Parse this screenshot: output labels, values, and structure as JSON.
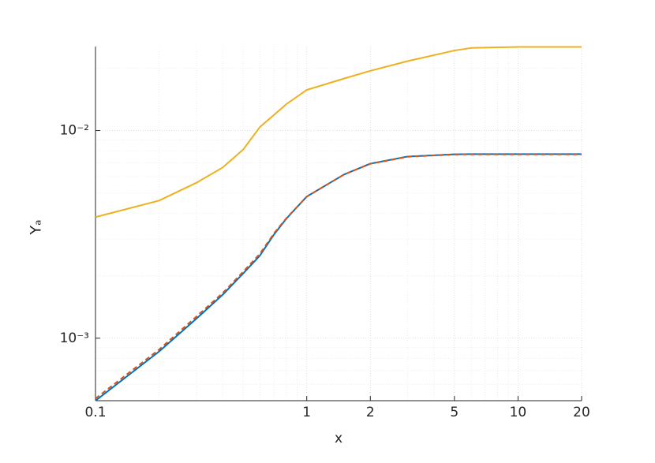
{
  "chart_data": {
    "type": "line",
    "xlabel": "x",
    "ylabel": "Yₐ",
    "x": [
      0.1,
      0.2,
      0.3,
      0.4,
      0.5,
      0.6,
      0.7,
      0.8,
      1,
      1.5,
      2,
      3,
      5,
      6,
      10,
      20
    ],
    "series": [
      {
        "color": "#EDB120",
        "dash": false,
        "values": [
          0.00383,
          0.0046,
          0.0056,
          0.00664,
          0.0081,
          0.0104,
          0.0119,
          0.0134,
          0.0157,
          0.0178,
          0.0194,
          0.0216,
          0.0243,
          0.025,
          0.0253,
          0.0253
        ]
      },
      {
        "color": "#0072BD",
        "dash": false,
        "values": [
          0.0005,
          0.000863,
          0.00124,
          0.00162,
          0.00205,
          0.0025,
          0.00316,
          0.00376,
          0.00481,
          0.00614,
          0.00693,
          0.0075,
          0.00769,
          0.0077,
          0.0077,
          0.0077
        ]
      },
      {
        "color": "#D95319",
        "dash": true,
        "values": [
          0.000512,
          0.000882,
          0.00127,
          0.00165,
          0.00209,
          0.00255,
          0.0032,
          0.00378,
          0.00481,
          0.00614,
          0.00692,
          0.00748,
          0.00767,
          0.00768,
          0.00768,
          0.00768
        ]
      }
    ],
    "xlog": true,
    "ylog": true,
    "xlim": [
      0.1,
      20
    ],
    "ylim": [
      0.0005,
      0.0254
    ],
    "xticks": [
      0.1,
      1,
      2,
      5,
      10,
      20
    ],
    "yticks": [
      {
        "value": 0.001,
        "label": "10⁻³"
      },
      {
        "value": 0.01,
        "label": "10⁻²"
      }
    ],
    "grid": true,
    "minor_grid": true
  }
}
